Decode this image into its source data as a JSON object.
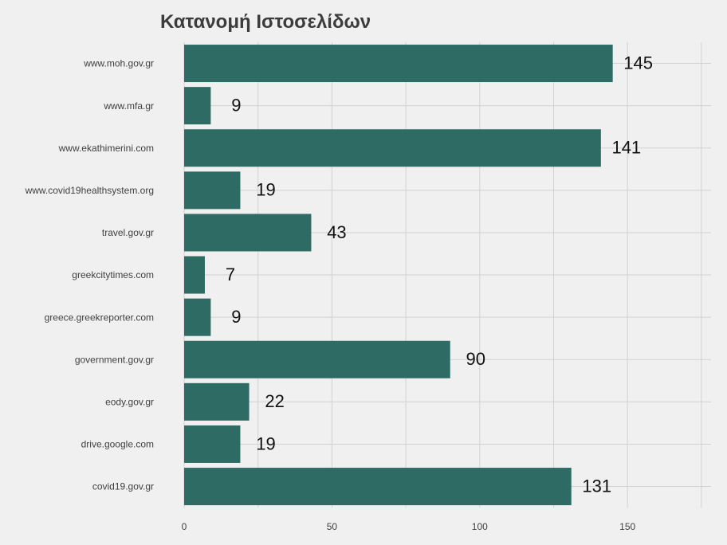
{
  "chart_data": {
    "type": "bar",
    "orientation": "horizontal",
    "title": "Κατανομή Ιστοσελίδων",
    "xlabel": "",
    "ylabel": "",
    "categories": [
      "www.moh.gov.gr",
      "www.mfa.gr",
      "www.ekathimerini.com",
      "www.covid19healthsystem.org",
      "travel.gov.gr",
      "greekcitytimes.com",
      "greece.greekreporter.com",
      "government.gov.gr",
      "eody.gov.gr",
      "drive.google.com",
      "covid19.gov.gr"
    ],
    "values": [
      145,
      9,
      141,
      19,
      43,
      7,
      9,
      90,
      22,
      19,
      131
    ],
    "xlim": [
      0,
      178
    ],
    "xticks": [
      0,
      50,
      100,
      150
    ],
    "grid": true,
    "bar_color": "#2e6b64",
    "background": "#f0f0f0"
  }
}
